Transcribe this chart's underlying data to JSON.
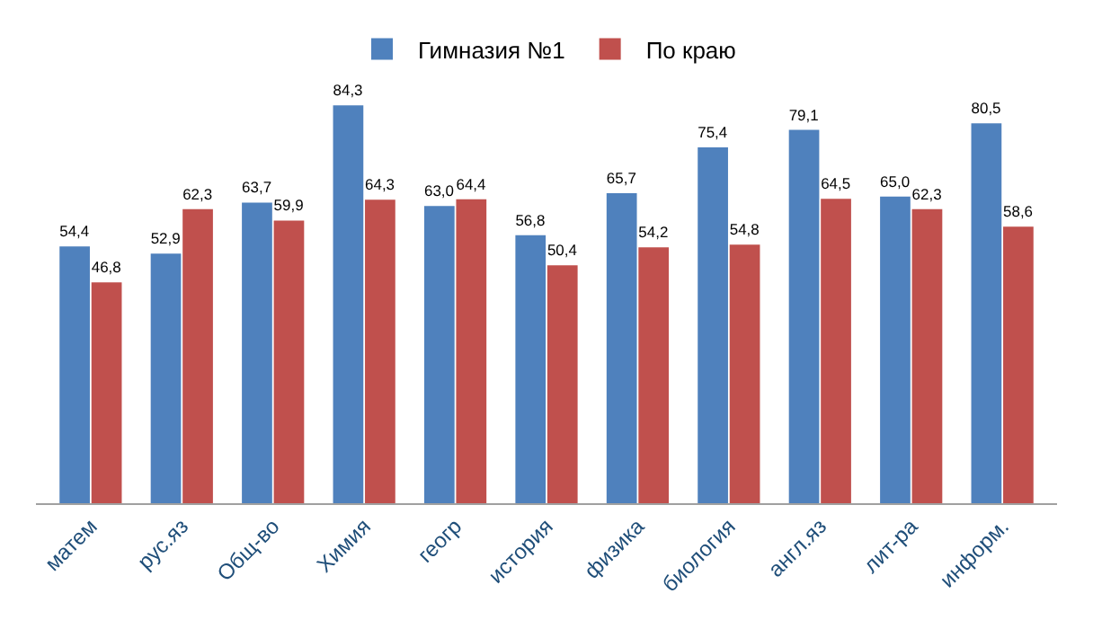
{
  "chart_data": {
    "type": "bar",
    "categories": [
      "матем",
      "рус.яз",
      "Общ-во",
      "Химия",
      "геогр",
      "история",
      "физика",
      "биология",
      "англ.яз",
      "лит-ра",
      "информ."
    ],
    "series": [
      {
        "name": "Гимназия №1",
        "color": "#4f81bd",
        "values": [
          54.4,
          52.9,
          63.7,
          84.3,
          63.0,
          56.8,
          65.7,
          75.4,
          79.1,
          65.0,
          80.5
        ],
        "value_labels": [
          "54,4",
          "52,9",
          "63,7",
          "84,3",
          "63,0",
          "56,8",
          "65,7",
          "75,4",
          "79,1",
          "65,0",
          "80,5"
        ]
      },
      {
        "name": "По краю",
        "color": "#c0504d",
        "values": [
          46.8,
          62.3,
          59.9,
          64.3,
          64.4,
          50.4,
          54.2,
          54.8,
          64.5,
          62.3,
          58.6
        ],
        "value_labels": [
          "46,8",
          "62,3",
          "59,9",
          "64,3",
          "64,4",
          "50,4",
          "54,2",
          "54,8",
          "64,5",
          "62,3",
          "58,6"
        ]
      }
    ],
    "data_labels": true,
    "legend": "top"
  }
}
